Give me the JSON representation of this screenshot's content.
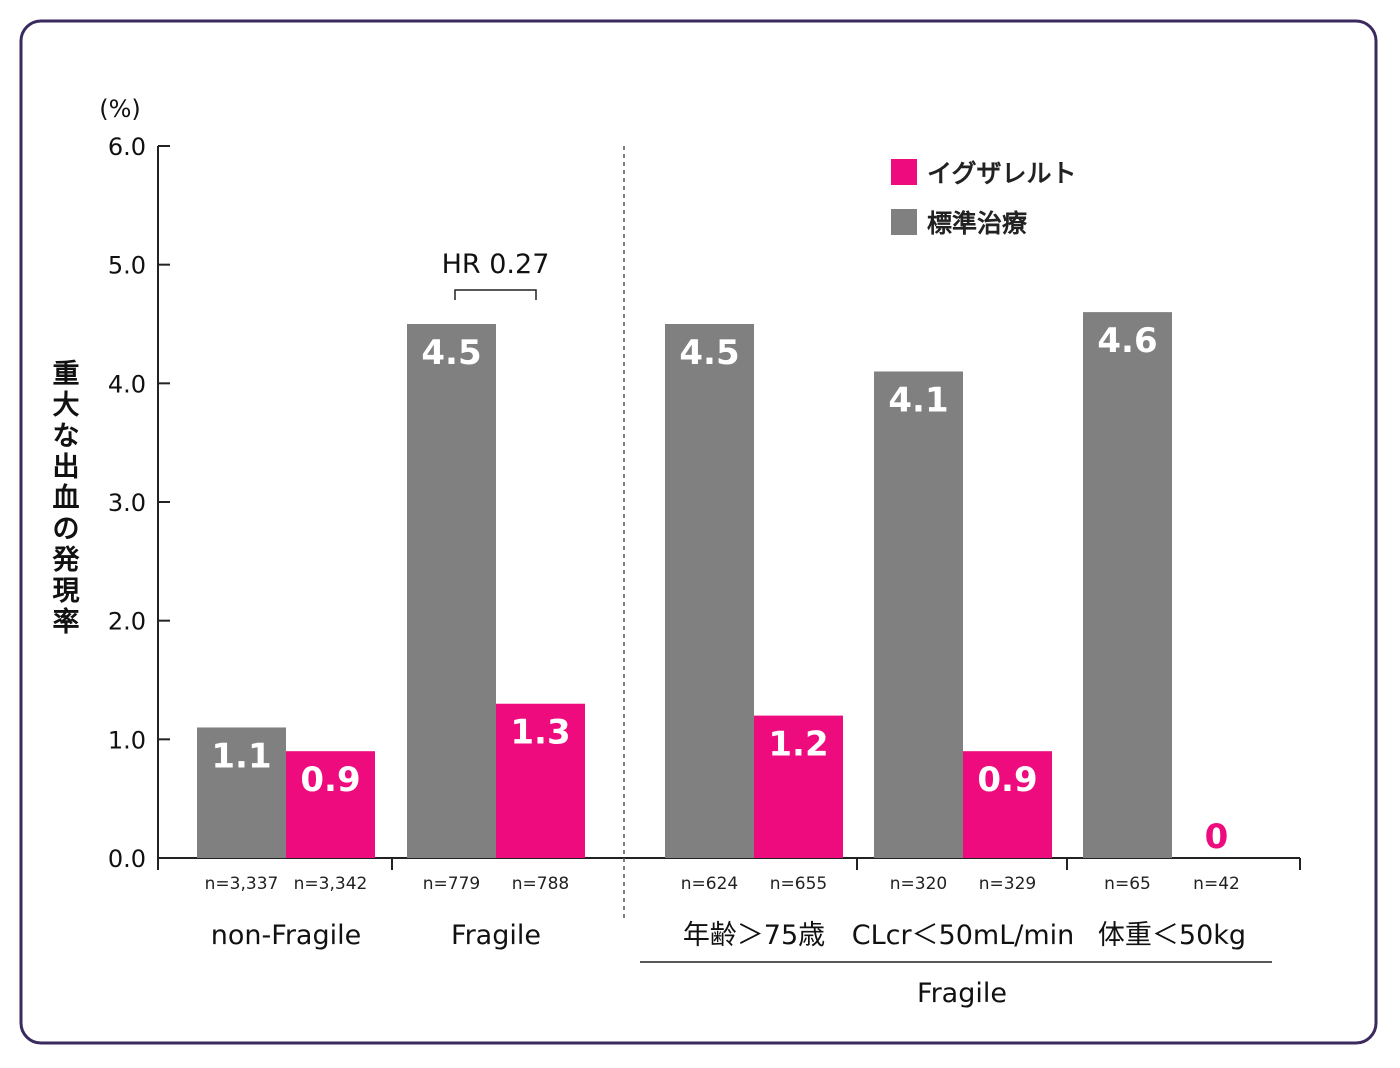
{
  "chart_data": {
    "type": "bar",
    "yunit": "(%)",
    "ylabel": "重大な出血の発現率",
    "ylim": [
      0,
      6.0
    ],
    "yticks": [
      "0.0",
      "1.0",
      "2.0",
      "3.0",
      "4.0",
      "5.0",
      "6.0"
    ],
    "legend": [
      {
        "name": "イグザレルト",
        "color": "#ed0b7d"
      },
      {
        "name": "標準治療",
        "color": "#808080"
      }
    ],
    "legend_position": "top-right",
    "grid": false,
    "groups": [
      {
        "label": "non-Fragile",
        "bars": [
          {
            "series": "標準治療",
            "value": 1.1,
            "label": "1.1",
            "n": "n=3,337"
          },
          {
            "series": "イグザレルト",
            "value": 0.9,
            "label": "0.9",
            "n": "n=3,342"
          }
        ]
      },
      {
        "label": "Fragile",
        "bars": [
          {
            "series": "標準治療",
            "value": 4.5,
            "label": "4.5",
            "n": "n=779"
          },
          {
            "series": "イグザレルト",
            "value": 1.3,
            "label": "1.3",
            "n": "n=788"
          }
        ]
      },
      {
        "label": "年齢＞75歳",
        "bars": [
          {
            "series": "標準治療",
            "value": 4.5,
            "label": "4.5",
            "n": "n=624"
          },
          {
            "series": "イグザレルト",
            "value": 1.2,
            "label": "1.2",
            "n": "n=655"
          }
        ]
      },
      {
        "label": "CLcr＜50mL/min",
        "bars": [
          {
            "series": "標準治療",
            "value": 4.1,
            "label": "4.1",
            "n": "n=320"
          },
          {
            "series": "イグザレルト",
            "value": 0.9,
            "label": "0.9",
            "n": "n=329"
          }
        ]
      },
      {
        "label": "体重＜50kg",
        "bars": [
          {
            "series": "標準治療",
            "value": 4.6,
            "label": "4.6",
            "n": "n=65"
          },
          {
            "series": "イグザレルト",
            "value": 0,
            "label": "0",
            "n": "n=42"
          }
        ]
      }
    ],
    "annotation": "HR 0.27",
    "subgroup_label": "Fragile"
  }
}
